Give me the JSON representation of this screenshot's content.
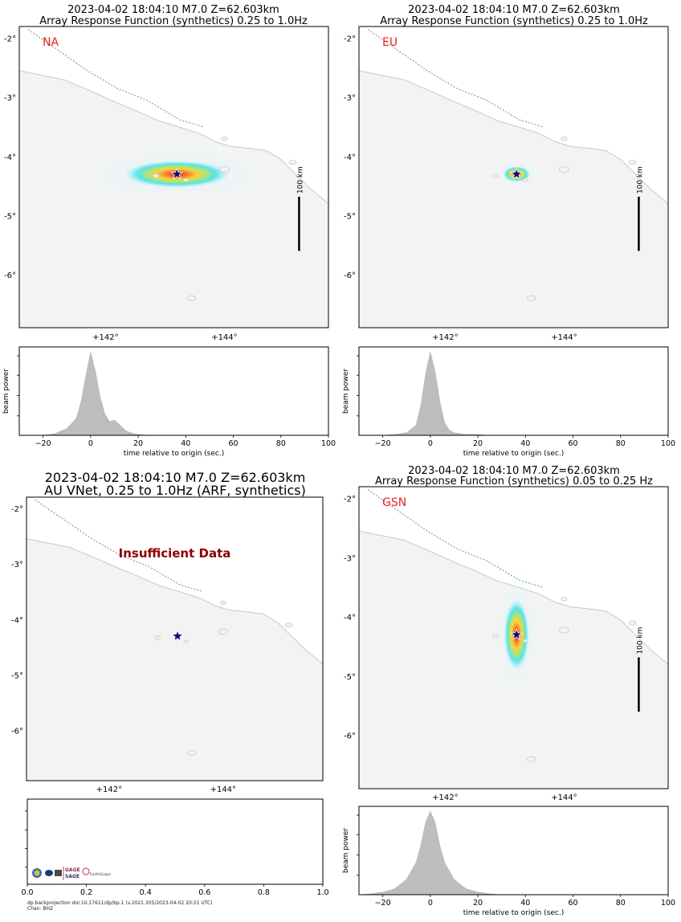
{
  "colors": {
    "land": "#f3f3f3",
    "sea": "#ffffff",
    "coast": "#c8c8c8",
    "trench": "#7a7a7a",
    "panel_label": "#e8211b",
    "insufficient": "#8b0000",
    "star_fill": "#0c0c7a",
    "beam_fill": "#bdbdbd"
  },
  "map_axes": {
    "lat_labels": [
      "-2°",
      "-3°",
      "-4°",
      "-5°",
      "-6°"
    ],
    "lon_labels": [
      "+142°",
      "+144°"
    ]
  },
  "scale_bar_label": "100 km",
  "panels": [
    {
      "key": "na",
      "title_line1": "2023-04-02 18:04:10 M7.0 Z=62.603km",
      "title_line2": "Array Response Function (synthetics) 0.25 to 1.0Hz",
      "label": "NA",
      "epicenter": {
        "lon": 143.2,
        "lat": -4.3
      },
      "response": {
        "rx": 0.92,
        "ry": 0.24,
        "extent": 2.3
      }
    },
    {
      "key": "eu",
      "title_line1": "2023-04-02 18:04:10 M7.0 Z=62.603km",
      "title_line2": "Array Response Function (synthetics) 0.25 to 1.0Hz",
      "label": "EU",
      "epicenter": {
        "lon": 143.2,
        "lat": -4.3
      },
      "response": {
        "rx": 0.24,
        "ry": 0.14,
        "extent": 2.2
      }
    },
    {
      "key": "au",
      "title_line1": "2023-04-02 18:04:10 M7.0 Z=62.603km",
      "title_line2": "AU VNet, 0.25 to 1.0Hz (ARF, synthetics)",
      "label": "",
      "notice": "Insufficient Data",
      "epicenter": {
        "lon": 143.2,
        "lat": -4.3
      }
    },
    {
      "key": "gsn",
      "title_line1": "2023-04-02 18:04:10 M7.0 Z=62.603km",
      "title_line2": "Array Response Function (synthetics) 0.05 to 0.25 Hz",
      "label": "GSN",
      "epicenter": {
        "lon": 143.2,
        "lat": -4.3
      },
      "response": {
        "rx": 0.22,
        "ry": 0.62,
        "extent": 2.2
      }
    }
  ],
  "beam_plots": {
    "ylabel": "beam power",
    "xlabel": "time relative to origin (sec.)",
    "xticks": [
      "−20",
      "0",
      "20",
      "40",
      "60",
      "80",
      "100"
    ],
    "au_xticks": [
      "0.0",
      "0.2",
      "0.4",
      "0.6",
      "0.8",
      "1.0"
    ]
  },
  "chart_data": [
    {
      "type": "area",
      "panel": "NA",
      "xlabel": "time relative to origin (sec.)",
      "ylabel": "beam power",
      "xlim": [
        -30,
        100
      ],
      "x": [
        -30,
        -20,
        -15,
        -10,
        -6,
        -4,
        -2,
        0,
        2,
        4,
        6,
        8,
        10,
        12,
        15,
        18,
        20,
        25,
        30,
        40,
        100
      ],
      "y": [
        0,
        0,
        0.02,
        0.08,
        0.2,
        0.4,
        0.7,
        0.98,
        0.75,
        0.45,
        0.25,
        0.16,
        0.18,
        0.13,
        0.05,
        0.02,
        0.01,
        0,
        0,
        0,
        0
      ]
    },
    {
      "type": "area",
      "panel": "EU",
      "xlabel": "time relative to origin (sec.)",
      "ylabel": "beam power",
      "xlim": [
        -30,
        100
      ],
      "x": [
        -30,
        -20,
        -15,
        -10,
        -6,
        -4,
        -2,
        0,
        2,
        4,
        6,
        8,
        10,
        15,
        20,
        25,
        100
      ],
      "y": [
        0,
        0,
        0.01,
        0.03,
        0.12,
        0.35,
        0.72,
        0.98,
        0.75,
        0.4,
        0.15,
        0.06,
        0.03,
        0.01,
        0.01,
        0,
        0
      ]
    },
    {
      "type": "area",
      "panel": "GSN",
      "xlabel": "time relative to origin (sec.)",
      "ylabel": "beam power",
      "xlim": [
        -30,
        100
      ],
      "x": [
        -30,
        -25,
        -20,
        -15,
        -10,
        -6,
        -4,
        -2,
        0,
        2,
        4,
        6,
        10,
        15,
        20,
        25,
        30,
        100
      ],
      "y": [
        0,
        0.01,
        0.03,
        0.07,
        0.18,
        0.38,
        0.58,
        0.85,
        0.98,
        0.85,
        0.58,
        0.38,
        0.18,
        0.07,
        0.03,
        0.01,
        0,
        0
      ]
    }
  ],
  "footer": {
    "logo_text_1": "GAGE",
    "logo_text_2": "SAGE",
    "logo_text_3": "EarthScope",
    "doi": "dp.backprojection doi:10.17611/dp/bp.1 (v.2021.305/2023-04-02 20:21 UTC)",
    "chan": "Chan: BHZ"
  }
}
